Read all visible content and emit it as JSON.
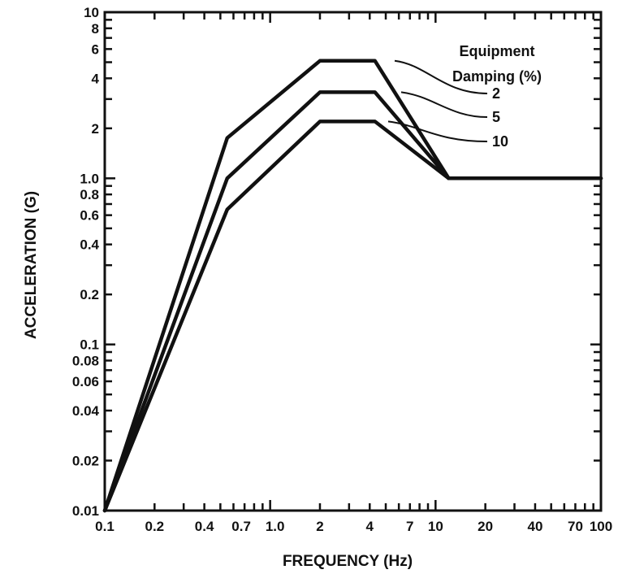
{
  "chart_data": {
    "type": "line",
    "xlabel": "FREQUENCY (Hz)",
    "ylabel": "ACCELERATION (G)",
    "x_scale": "log",
    "y_scale": "log",
    "xlim": [
      0.1,
      100
    ],
    "ylim": [
      0.01,
      10
    ],
    "grid": false,
    "x_tick_labels": [
      {
        "value": 0.1,
        "label": "0.1"
      },
      {
        "value": 0.2,
        "label": "0.2"
      },
      {
        "value": 0.4,
        "label": "0.4"
      },
      {
        "value": 0.7,
        "label": "0.7"
      },
      {
        "value": 1,
        "label": "1.0"
      },
      {
        "value": 2,
        "label": "2"
      },
      {
        "value": 4,
        "label": "4"
      },
      {
        "value": 7,
        "label": "7"
      },
      {
        "value": 10,
        "label": "10"
      },
      {
        "value": 20,
        "label": "20"
      },
      {
        "value": 40,
        "label": "40"
      },
      {
        "value": 70,
        "label": "70"
      },
      {
        "value": 100,
        "label": "100"
      }
    ],
    "y_tick_labels": [
      {
        "value": 0.01,
        "label": "0.01"
      },
      {
        "value": 0.02,
        "label": "0.02"
      },
      {
        "value": 0.04,
        "label": "0.04"
      },
      {
        "value": 0.06,
        "label": "0.06"
      },
      {
        "value": 0.08,
        "label": "0.08"
      },
      {
        "value": 0.1,
        "label": "0.1"
      },
      {
        "value": 0.2,
        "label": "0.2"
      },
      {
        "value": 0.4,
        "label": "0.4"
      },
      {
        "value": 0.6,
        "label": "0.6"
      },
      {
        "value": 0.8,
        "label": "0.8"
      },
      {
        "value": 1,
        "label": "1.0"
      },
      {
        "value": 2,
        "label": "2"
      },
      {
        "value": 4,
        "label": "4"
      },
      {
        "value": 6,
        "label": "6"
      },
      {
        "value": 8,
        "label": "8"
      },
      {
        "value": 10,
        "label": "10"
      }
    ],
    "legend": {
      "title_lines": [
        "Equipment",
        "Damping (%)"
      ],
      "placement": "top-right"
    },
    "series": [
      {
        "name": "2",
        "points": [
          [
            0.1,
            0.01
          ],
          [
            0.55,
            1.75
          ],
          [
            2,
            5.1
          ],
          [
            4.3,
            5.1
          ],
          [
            12,
            1.0
          ],
          [
            100,
            1.0
          ]
        ]
      },
      {
        "name": "5",
        "points": [
          [
            0.1,
            0.01
          ],
          [
            0.55,
            1.0
          ],
          [
            2,
            3.3
          ],
          [
            4.3,
            3.3
          ],
          [
            12,
            1.0
          ],
          [
            100,
            1.0
          ]
        ]
      },
      {
        "name": "10",
        "points": [
          [
            0.1,
            0.01
          ],
          [
            0.55,
            0.65
          ],
          [
            2,
            2.2
          ],
          [
            4.3,
            2.2
          ],
          [
            12,
            1.0
          ],
          [
            100,
            1.0
          ]
        ]
      }
    ]
  }
}
